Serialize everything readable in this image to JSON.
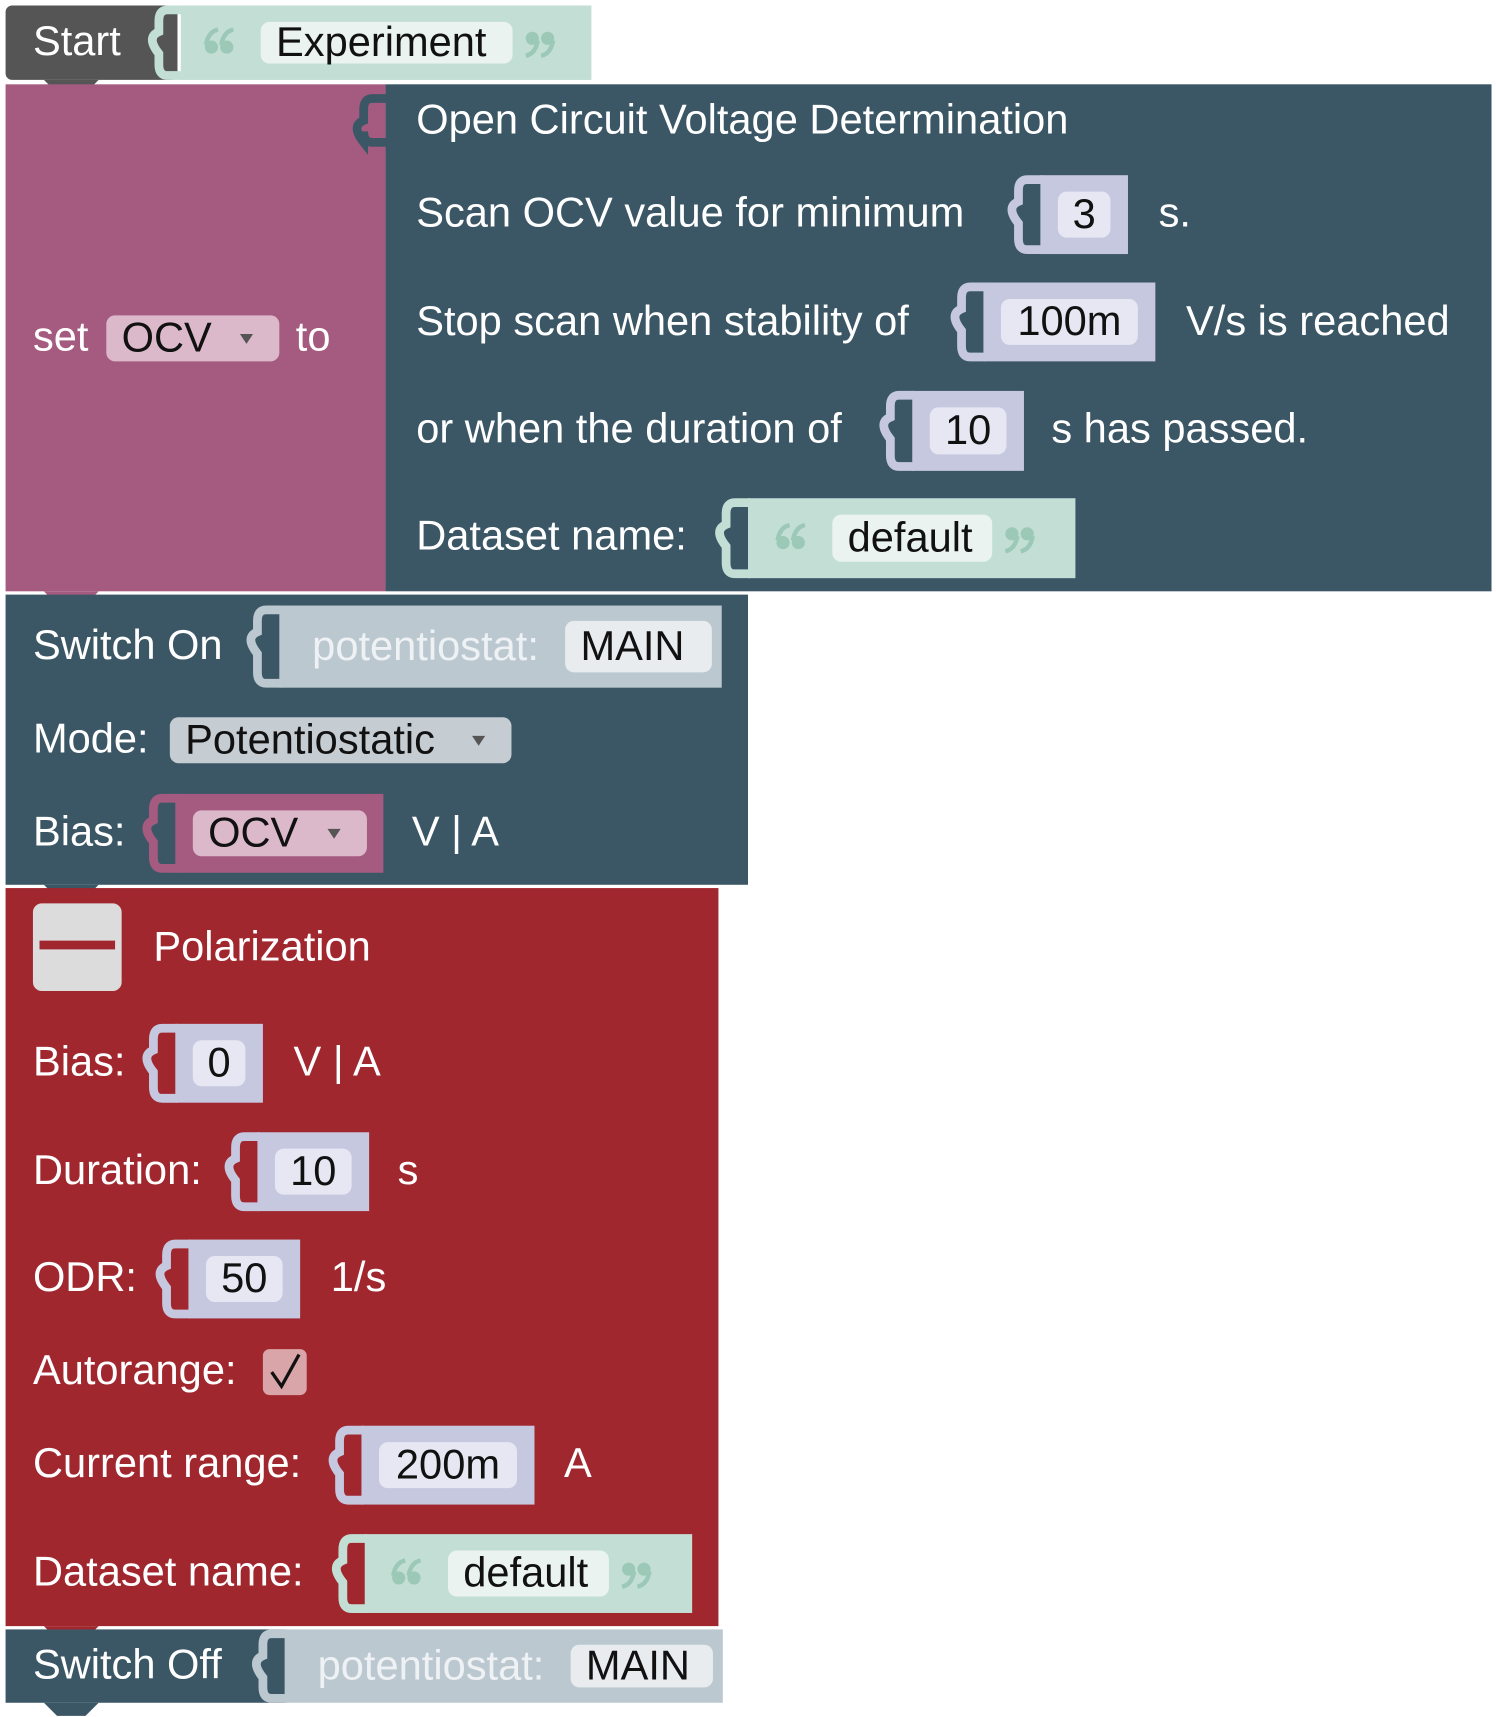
{
  "start": {
    "label": "Start",
    "name": "Experiment"
  },
  "set_variable": {
    "set": "set",
    "variable": "OCV",
    "to": "to"
  },
  "ocv": {
    "title": "Open Circuit Voltage Determination",
    "min_scan_label": "Scan OCV value for minimum",
    "min_scan": "3",
    "min_scan_unit": "s.",
    "stability_label": "Stop scan when stability of",
    "stability": "100m",
    "stability_unit": "V/s is reached",
    "duration_label": "or when the duration of",
    "duration": "10",
    "duration_unit": "s has passed.",
    "dataset_label": "Dataset name:",
    "dataset": "default"
  },
  "switch_on": {
    "label": "Switch On",
    "device_label": "potentiostat:",
    "device": "MAIN",
    "mode_label": "Mode:",
    "mode": "Potentiostatic",
    "bias_label": "Bias:",
    "bias": "OCV",
    "bias_unit": "V | A"
  },
  "polarization": {
    "title": "Polarization",
    "bias_label": "Bias:",
    "bias": "0",
    "bias_unit": "V | A",
    "duration_label": "Duration:",
    "duration": "10",
    "duration_unit": "s",
    "odr_label": "ODR:",
    "odr": "50",
    "odr_unit": "1/s",
    "autorange_label": "Autorange:",
    "autorange": true,
    "current_range_label": "Current range:",
    "current_range": "200m",
    "current_range_unit": "A",
    "dataset_label": "Dataset name:",
    "dataset": "default"
  },
  "switch_off": {
    "label": "Switch Off",
    "device_label": "potentiostat:",
    "device": "MAIN"
  }
}
